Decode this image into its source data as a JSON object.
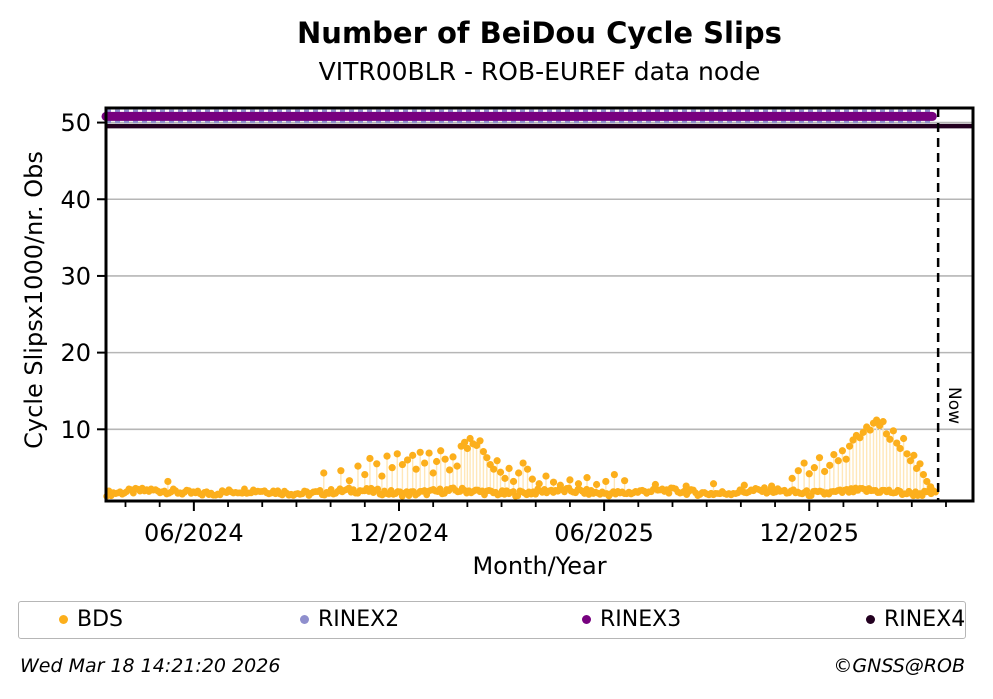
{
  "title": "Number of BeiDou Cycle Slips",
  "subtitle": "VITR00BLR - ROB-EUREF data node",
  "footer": {
    "timestamp": "Wed Mar 18 14:21:20 2026",
    "credit": "©GNSS@ROB"
  },
  "colors": {
    "bds": "#fcaf1c",
    "rinex2": "#8f8fcd",
    "rinex3": "#77017f",
    "rinex4": "#230020",
    "grid": "#b6b6b6",
    "stem": "#ffe7b8",
    "axis": "#000000"
  },
  "legend": {
    "items": [
      {
        "label": "BDS",
        "series": "bds"
      },
      {
        "label": "RINEX2",
        "series": "rinex2"
      },
      {
        "label": "RINEX3",
        "series": "rinex3"
      },
      {
        "label": "RINEX4",
        "series": "rinex4"
      }
    ]
  },
  "chart_data": {
    "type": "scatter",
    "xlabel": "Month/Year",
    "ylabel": "Cycle Slipsx1000/nr. Obs",
    "x_unit": "decimal months since 2024-01-01 (5 = 06/2024)",
    "x_range_months": [
      2.43,
      27.79
    ],
    "y_range": [
      0.65,
      51.9
    ],
    "y_ticks": [
      10,
      20,
      30,
      40,
      50
    ],
    "x_major_ticks": [
      {
        "m": 5,
        "label": "06/2024"
      },
      {
        "m": 11,
        "label": "12/2024"
      },
      {
        "m": 17,
        "label": "06/2025"
      },
      {
        "m": 23,
        "label": "12/2025"
      }
    ],
    "x_minor_ticks_every_month": true,
    "grid": true,
    "now_line": {
      "month": 26.77,
      "label": "Now",
      "style": "dashed-vertical"
    },
    "series": [
      {
        "name": "RINEX2",
        "type": "hline",
        "value": 50.8,
        "from": 2.43,
        "to": 26.6,
        "render": "dashed-wide-behind"
      },
      {
        "name": "RINEX3",
        "type": "hline",
        "value": 50.8,
        "from": 2.43,
        "to": 26.6,
        "render": "thick-round-cap"
      },
      {
        "name": "RINEX4",
        "type": "hline",
        "value": 49.8,
        "from": 2.43,
        "to": 27.79,
        "render": "solid"
      },
      {
        "name": "BDS",
        "type": "scatter",
        "baseline": {
          "start": 2.45,
          "end": 26.72,
          "step": 0.065,
          "base": 1.45,
          "jitter": 0.75,
          "wave": 0.2,
          "note": "dense daily low-level scatter ~1.2-2.4"
        },
        "cluster_points": [
          [
            4.24,
            3.2
          ],
          [
            8.8,
            4.3
          ],
          [
            9.3,
            4.6
          ],
          [
            9.55,
            3.3
          ],
          [
            9.8,
            5.2
          ],
          [
            10.0,
            4.1
          ],
          [
            10.15,
            6.2
          ],
          [
            10.35,
            5.5
          ],
          [
            10.5,
            3.9
          ],
          [
            10.65,
            6.5
          ],
          [
            10.8,
            5.0
          ],
          [
            10.95,
            6.8
          ],
          [
            11.1,
            5.4
          ],
          [
            11.25,
            6.0
          ],
          [
            11.4,
            6.6
          ],
          [
            11.5,
            4.8
          ],
          [
            11.62,
            7.0
          ],
          [
            11.75,
            5.6
          ],
          [
            11.88,
            6.9
          ],
          [
            12.0,
            4.3
          ],
          [
            12.1,
            5.8
          ],
          [
            12.22,
            7.2
          ],
          [
            12.35,
            6.1
          ],
          [
            12.48,
            4.7
          ],
          [
            12.58,
            6.4
          ],
          [
            12.7,
            5.2
          ],
          [
            12.82,
            7.8
          ],
          [
            12.92,
            8.3
          ],
          [
            13.0,
            7.5
          ],
          [
            13.08,
            8.8
          ],
          [
            13.17,
            8.1
          ],
          [
            13.27,
            7.9
          ],
          [
            13.37,
            8.5
          ],
          [
            13.47,
            7.1
          ],
          [
            13.57,
            6.3
          ],
          [
            13.67,
            5.4
          ],
          [
            13.77,
            4.8
          ],
          [
            13.87,
            5.9
          ],
          [
            13.97,
            4.4
          ],
          [
            14.1,
            3.6
          ],
          [
            14.22,
            4.9
          ],
          [
            14.35,
            3.2
          ],
          [
            14.5,
            4.3
          ],
          [
            14.63,
            5.6
          ],
          [
            14.76,
            4.8
          ],
          [
            14.9,
            3.5
          ],
          [
            15.1,
            2.9
          ],
          [
            15.3,
            3.9
          ],
          [
            15.52,
            3.1
          ],
          [
            15.72,
            2.7
          ],
          [
            16.0,
            3.4
          ],
          [
            16.25,
            2.9
          ],
          [
            16.5,
            3.7
          ],
          [
            16.78,
            2.8
          ],
          [
            17.05,
            3.2
          ],
          [
            17.3,
            4.1
          ],
          [
            17.6,
            3.3
          ],
          [
            18.5,
            2.8
          ],
          [
            19.4,
            2.6
          ],
          [
            20.2,
            2.9
          ],
          [
            21.1,
            2.7
          ],
          [
            21.9,
            2.6
          ],
          [
            22.5,
            3.6
          ],
          [
            22.68,
            4.6
          ],
          [
            22.85,
            5.6
          ],
          [
            23.0,
            4.2
          ],
          [
            23.15,
            5.0
          ],
          [
            23.3,
            6.3
          ],
          [
            23.45,
            4.5
          ],
          [
            23.6,
            5.3
          ],
          [
            23.72,
            6.7
          ],
          [
            23.85,
            5.9
          ],
          [
            23.97,
            7.2
          ],
          [
            24.08,
            6.1
          ],
          [
            24.18,
            7.8
          ],
          [
            24.28,
            8.6
          ],
          [
            24.38,
            9.2
          ],
          [
            24.48,
            8.9
          ],
          [
            24.58,
            9.6
          ],
          [
            24.68,
            10.3
          ],
          [
            24.78,
            9.9
          ],
          [
            24.88,
            10.8
          ],
          [
            24.97,
            11.2
          ],
          [
            25.06,
            10.5
          ],
          [
            25.16,
            11.0
          ],
          [
            25.26,
            9.4
          ],
          [
            25.36,
            8.7
          ],
          [
            25.46,
            9.8
          ],
          [
            25.56,
            8.2
          ],
          [
            25.66,
            7.5
          ],
          [
            25.76,
            8.8
          ],
          [
            25.86,
            6.8
          ],
          [
            25.96,
            5.9
          ],
          [
            26.06,
            6.6
          ],
          [
            26.14,
            4.9
          ],
          [
            26.24,
            5.5
          ],
          [
            26.34,
            4.1
          ],
          [
            26.44,
            3.2
          ],
          [
            26.55,
            2.5
          ]
        ]
      }
    ]
  }
}
